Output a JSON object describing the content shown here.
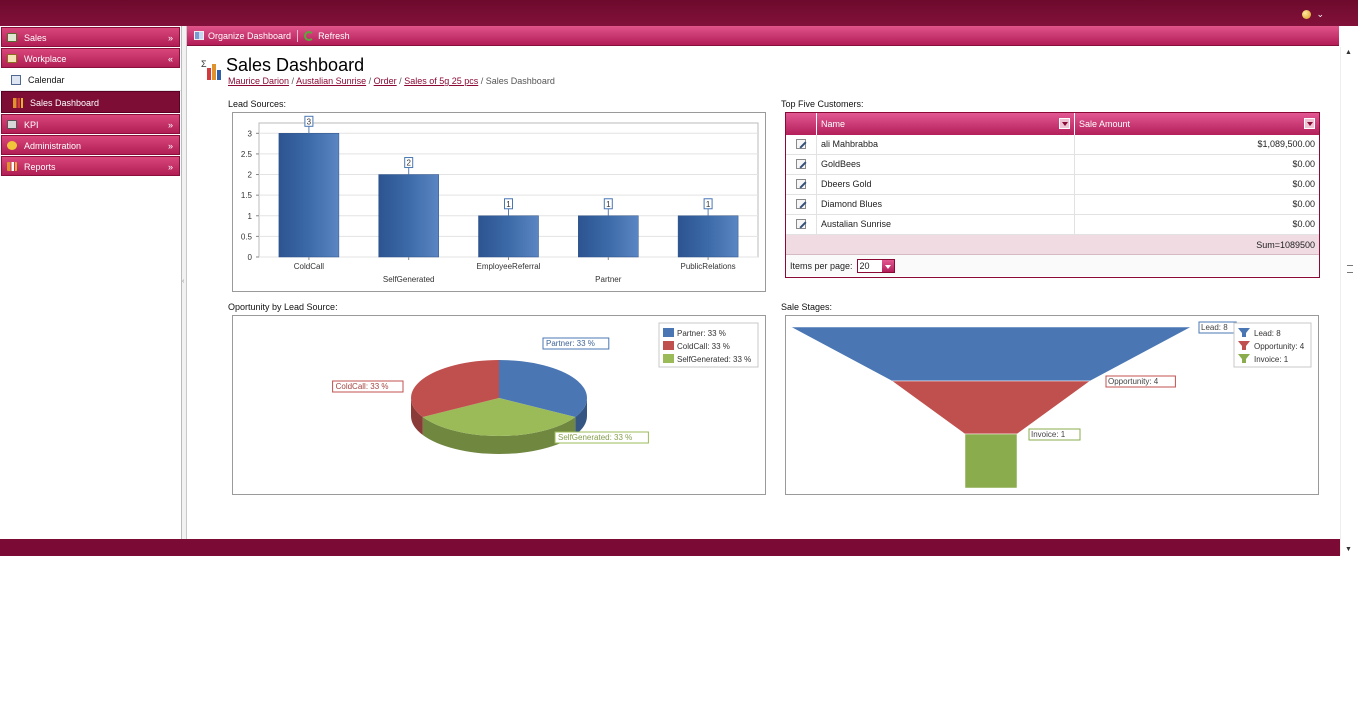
{
  "topbar": {
    "user_menu_icon": "user-gem-icon",
    "chevron": "⌄"
  },
  "sidebar": {
    "groups": [
      {
        "label": "Sales",
        "icon": "sales-icon",
        "chevron": "»"
      },
      {
        "label": "Workplace",
        "icon": "workplace-icon",
        "chevron": "«"
      }
    ],
    "workplace_items": [
      {
        "label": "Calendar",
        "icon": "calendar-icon"
      },
      {
        "label": "Sales Dashboard",
        "icon": "dashboard-icon"
      }
    ],
    "groups_after": [
      {
        "label": "KPI",
        "icon": "kpi-icon",
        "chevron": "»"
      },
      {
        "label": "Administration",
        "icon": "administration-icon",
        "chevron": "»"
      },
      {
        "label": "Reports",
        "icon": "reports-icon",
        "chevron": "»"
      }
    ]
  },
  "toolbar": {
    "organize_label": "Organize Dashboard",
    "refresh_label": "Refresh"
  },
  "page": {
    "title": "Sales Dashboard",
    "breadcrumb": [
      "Maurice Darion",
      "Austalian Sunrise",
      "Order",
      "Sales of 5g 25 pcs"
    ],
    "breadcrumb_current": "Sales Dashboard"
  },
  "sections": {
    "lead_sources": "Lead Sources:",
    "top_customers": "Top Five Customers:",
    "opportunity": "Oportunity by Lead Source:",
    "stages": "Sale Stages:"
  },
  "customers": {
    "headers": {
      "name": "Name",
      "amount": "Sale Amount"
    },
    "rows": [
      {
        "name": "ali Mahbrabba",
        "amount": "$1,089,500.00"
      },
      {
        "name": "GoldBees",
        "amount": "$0.00"
      },
      {
        "name": "Dbeers Gold",
        "amount": "$0.00"
      },
      {
        "name": "Diamond Blues",
        "amount": "$0.00"
      },
      {
        "name": "Austalian Sunrise",
        "amount": "$0.00"
      }
    ],
    "sum": "Sum=1089500",
    "items_per_page_label": "Items per page:",
    "items_per_page": "20"
  },
  "chart_data": [
    {
      "type": "bar",
      "categories": [
        "ColdCall",
        "SelfGenerated",
        "EmployeeReferral",
        "Partner",
        "PublicRelations"
      ],
      "values": [
        3,
        2,
        1,
        1,
        1
      ],
      "value_labels": [
        "3",
        "2",
        "1",
        "1",
        "1"
      ],
      "yticks": [
        "0",
        "0.5",
        "1",
        "1.5",
        "2",
        "2.5",
        "3"
      ],
      "ylim": [
        0,
        3.25
      ],
      "grid": true,
      "color": "#3c6aa8"
    },
    {
      "type": "pie",
      "slices": [
        {
          "name": "Partner",
          "value": 33,
          "label": "Partner: 33 %",
          "color": "#4a77b4"
        },
        {
          "name": "ColdCall",
          "value": 33,
          "label": "ColdCall: 33 %",
          "color": "#c0504d"
        },
        {
          "name": "SelfGenerated",
          "value": 33,
          "label": "SelfGenerated: 33 %",
          "color": "#9bbb59"
        }
      ],
      "legend": [
        "Partner: 33 %",
        "ColdCall: 33 %",
        "SelfGenerated: 33 %"
      ],
      "legend_position": "top-right"
    },
    {
      "type": "funnel",
      "stages": [
        {
          "name": "Lead",
          "value": 8,
          "label": "Lead: 8",
          "legend": "Lead: 8",
          "color": "#4a77b4"
        },
        {
          "name": "Opportunity",
          "value": 4,
          "label": "Opportunity: 4",
          "legend": "Opportunity: 4",
          "color": "#c0504d"
        },
        {
          "name": "Invoice",
          "value": 1,
          "label": "Invoice: 1",
          "legend": "Invoice: 1",
          "color": "#8aac4c"
        }
      ],
      "legend_position": "top-right"
    }
  ]
}
